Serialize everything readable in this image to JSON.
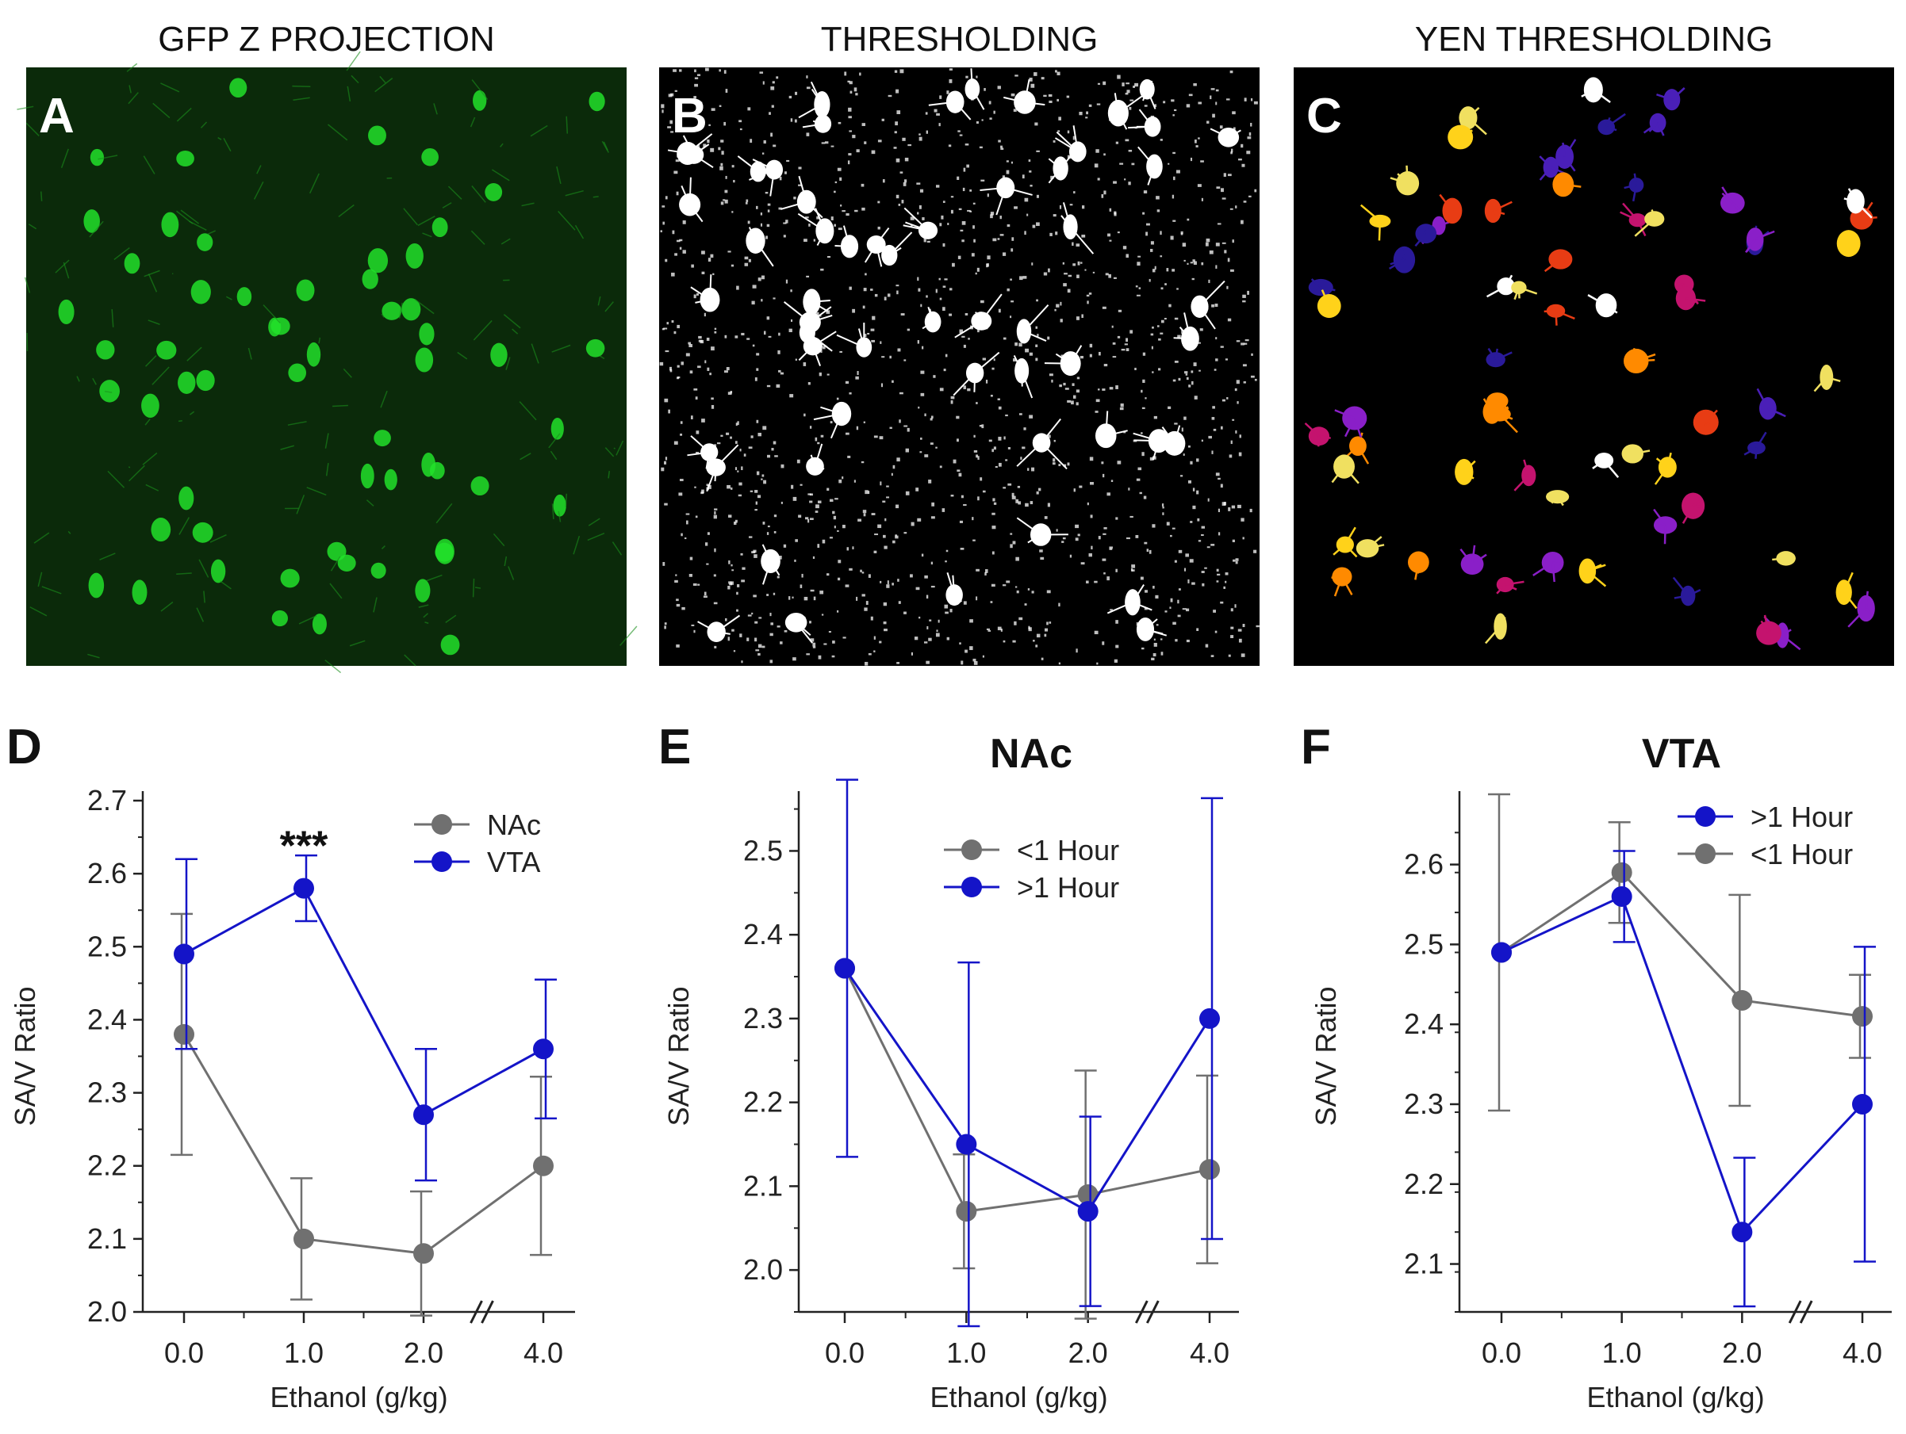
{
  "colors": {
    "nac": "#707070",
    "vta": "#1414c8",
    "gt1": "#1414c8",
    "lt1": "#707070"
  },
  "images": [
    {
      "label": "A",
      "title": "GFP Z PROJECTION",
      "kind": "green",
      "label_color": "#ffffff"
    },
    {
      "label": "B",
      "title": "THRESHOLDING",
      "kind": "white",
      "label_color": "#ffffff"
    },
    {
      "label": "C",
      "title": "YEN THRESHOLDING",
      "kind": "color",
      "label_color": "#ffffff"
    }
  ],
  "chart_data": [
    {
      "panel": "D",
      "type": "line",
      "title": "",
      "xlabel": "Ethanol (g/kg)",
      "ylabel": "SA/V Ratio",
      "categories": [
        "0.0",
        "1.0",
        "2.0",
        "4.0"
      ],
      "ylim": [
        2.0,
        2.7
      ],
      "yticks": [
        "2.0",
        "2.1",
        "2.2",
        "2.3",
        "2.4",
        "2.5",
        "2.6",
        "2.7"
      ],
      "annotation": "***",
      "annotation_at": 1,
      "series": [
        {
          "name": "NAc",
          "color_key": "nac",
          "values": [
            2.38,
            2.1,
            2.08,
            2.2
          ],
          "err": [
            0.165,
            0.083,
            0.085,
            0.122
          ]
        },
        {
          "name": "VTA",
          "color_key": "vta",
          "values": [
            2.49,
            2.58,
            2.27,
            2.36
          ],
          "err": [
            0.13,
            0.045,
            0.09,
            0.095
          ]
        }
      ],
      "legend": [
        {
          "name": "NAc",
          "color_key": "nac"
        },
        {
          "name": "VTA",
          "color_key": "vta"
        }
      ],
      "legend_pos": "top-right"
    },
    {
      "panel": "E",
      "type": "line",
      "title": "NAc",
      "xlabel": "Ethanol (g/kg)",
      "ylabel": "SA/V Ratio",
      "categories": [
        "0.0",
        "1.0",
        "2.0",
        "4.0"
      ],
      "ylim": [
        1.95,
        2.56
      ],
      "yticks": [
        "2.0",
        "2.1",
        "2.2",
        "2.3",
        "2.4",
        "2.5"
      ],
      "series": [
        {
          "name": "<1 Hour",
          "color_key": "lt1",
          "values": [
            2.36,
            2.07,
            2.09,
            2.12
          ],
          "err": [
            0.0,
            0.068,
            0.148,
            0.112
          ]
        },
        {
          "name": ">1 Hour",
          "color_key": "gt1",
          "values": [
            2.36,
            2.15,
            2.07,
            2.3
          ],
          "err": [
            0.225,
            0.217,
            0.113,
            0.263
          ]
        }
      ],
      "legend": [
        {
          "name": "<1 Hour",
          "color_key": "lt1"
        },
        {
          "name": ">1 Hour",
          "color_key": "gt1"
        }
      ],
      "legend_pos": "top-center"
    },
    {
      "panel": "F",
      "type": "line",
      "title": "VTA",
      "xlabel": "Ethanol (g/kg)",
      "ylabel": "SA/V Ratio",
      "categories": [
        "0.0",
        "1.0",
        "2.0",
        "4.0"
      ],
      "ylim": [
        2.04,
        2.68
      ],
      "yticks": [
        "2.1",
        "2.2",
        "2.3",
        "2.4",
        "2.5",
        "2.6"
      ],
      "series": [
        {
          "name": "<1 Hour",
          "color_key": "lt1",
          "values": [
            2.49,
            2.59,
            2.43,
            2.41
          ],
          "err": [
            0.198,
            0.063,
            0.132,
            0.052
          ]
        },
        {
          "name": ">1 Hour",
          "color_key": "gt1",
          "values": [
            2.49,
            2.56,
            2.14,
            2.3
          ],
          "err": [
            0.0,
            0.057,
            0.093,
            0.197
          ]
        }
      ],
      "legend": [
        {
          "name": ">1 Hour",
          "color_key": "gt1"
        },
        {
          "name": "<1 Hour",
          "color_key": "lt1"
        }
      ],
      "legend_pos": "top-right"
    }
  ]
}
